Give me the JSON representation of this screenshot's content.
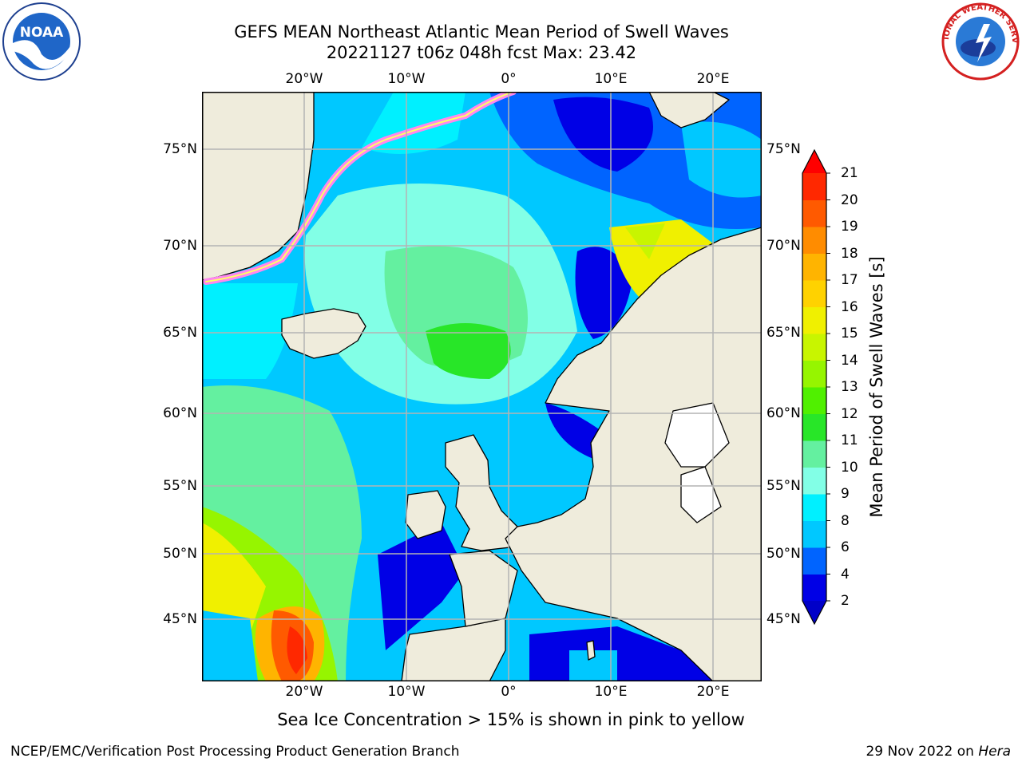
{
  "header": {
    "title_line1": "GEFS MEAN Northeast Atlantic Mean Period of Swell Waves",
    "title_line2": "20221127 t06z 048h fcst   Max: 23.42"
  },
  "map": {
    "lon_labels": [
      "20°W",
      "10°W",
      "0°",
      "10°E",
      "20°E"
    ],
    "lat_labels": [
      "75°N",
      "70°N",
      "65°N",
      "60°N",
      "55°N",
      "50°N",
      "45°N"
    ],
    "land_color": "#efecdc",
    "grid_color": "#b4b4b4"
  },
  "colorbar": {
    "label": "Mean Period of Swell Waves [s]",
    "ticks": [
      "2",
      "4",
      "6",
      "8",
      "9",
      "10",
      "11",
      "12",
      "13",
      "14",
      "15",
      "16",
      "17",
      "18",
      "19",
      "20",
      "21"
    ],
    "colors": [
      "#0000e6",
      "#0064ff",
      "#00c8ff",
      "#00f0ff",
      "#82ffe6",
      "#64f0a0",
      "#28e628",
      "#50f000",
      "#96f500",
      "#c8f500",
      "#f0f000",
      "#ffd200",
      "#ffb400",
      "#ff8c00",
      "#ff5a00",
      "#ff2800",
      "#e60000"
    ],
    "under_color": "#0000c8",
    "over_color": "#ff0000"
  },
  "footer": {
    "caption": "Sea Ice Concentration > 15% is shown in pink to yellow",
    "credit": "NCEP/EMC/Verification Post Processing Product Generation Branch",
    "date_prefix": "29 Nov 2022 on ",
    "date_host": "Hera"
  },
  "logos": {
    "left": "noara-logo",
    "right": "national-weather-service-logo",
    "left_text": "NOAA",
    "right_text": "NATIONAL WEATHER SERVICE"
  }
}
